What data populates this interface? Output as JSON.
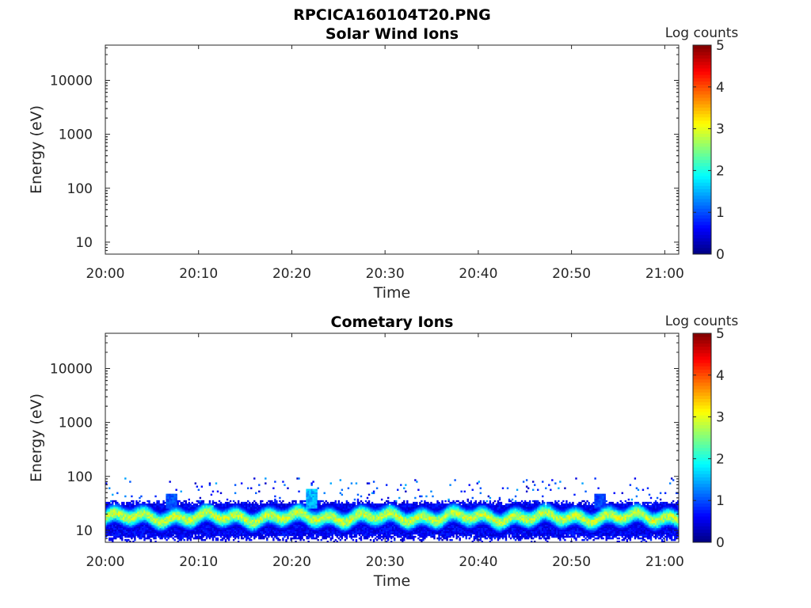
{
  "figure": {
    "main_title": "RPCICA160104T20.PNG"
  },
  "chart_data": [
    {
      "type": "heatmap",
      "title": "Solar Wind Ions",
      "xlabel": "Time",
      "ylabel": "Energy (eV)",
      "x_ticks": [
        "20:00",
        "20:10",
        "20:20",
        "20:30",
        "20:40",
        "20:50",
        "21:00"
      ],
      "x_range_minutes": [
        0,
        61.5
      ],
      "y_scale": "log",
      "y_ticks": [
        10,
        100,
        1000,
        10000
      ],
      "y_tick_labels": [
        "10",
        "100",
        "1000",
        "10000"
      ],
      "ylim": [
        6,
        45000
      ],
      "colorbar": {
        "label": "Log counts",
        "ticks": [
          "0",
          "1",
          "2",
          "3",
          "4",
          "5"
        ],
        "range": [
          0,
          5
        ],
        "colormap": "jet"
      },
      "signal": null
    },
    {
      "type": "heatmap",
      "title": "Cometary Ions",
      "xlabel": "Time",
      "ylabel": "Energy (eV)",
      "x_ticks": [
        "20:00",
        "20:10",
        "20:20",
        "20:30",
        "20:40",
        "20:50",
        "21:00"
      ],
      "x_range_minutes": [
        0,
        61.5
      ],
      "y_scale": "log",
      "y_ticks": [
        10,
        100,
        1000,
        10000
      ],
      "y_tick_labels": [
        "10",
        "100",
        "1000",
        "10000"
      ],
      "ylim": [
        6,
        45000
      ],
      "colorbar": {
        "label": "Log counts",
        "ticks": [
          "0",
          "1",
          "2",
          "3",
          "4",
          "5"
        ],
        "range": [
          0,
          5
        ],
        "colormap": "jet"
      },
      "signal": {
        "band_energy_range_eV": [
          7,
          32
        ],
        "band_peak_energy_eV": 17,
        "peak_log_counts": 3.0,
        "sparse_energy_range_eV": [
          35,
          90
        ],
        "features": [
          {
            "time_minutes": 7,
            "energy_eV": 45,
            "log_counts": 1.2
          },
          {
            "time_minutes": 11,
            "energy_eV": 28,
            "log_counts": 2.3
          },
          {
            "time_minutes": 22,
            "energy_eV": 55,
            "log_counts": 1.8
          },
          {
            "time_minutes": 45,
            "energy_eV": 24,
            "log_counts": 2.6
          },
          {
            "time_minutes": 53,
            "energy_eV": 45,
            "log_counts": 1.1
          }
        ]
      }
    }
  ]
}
